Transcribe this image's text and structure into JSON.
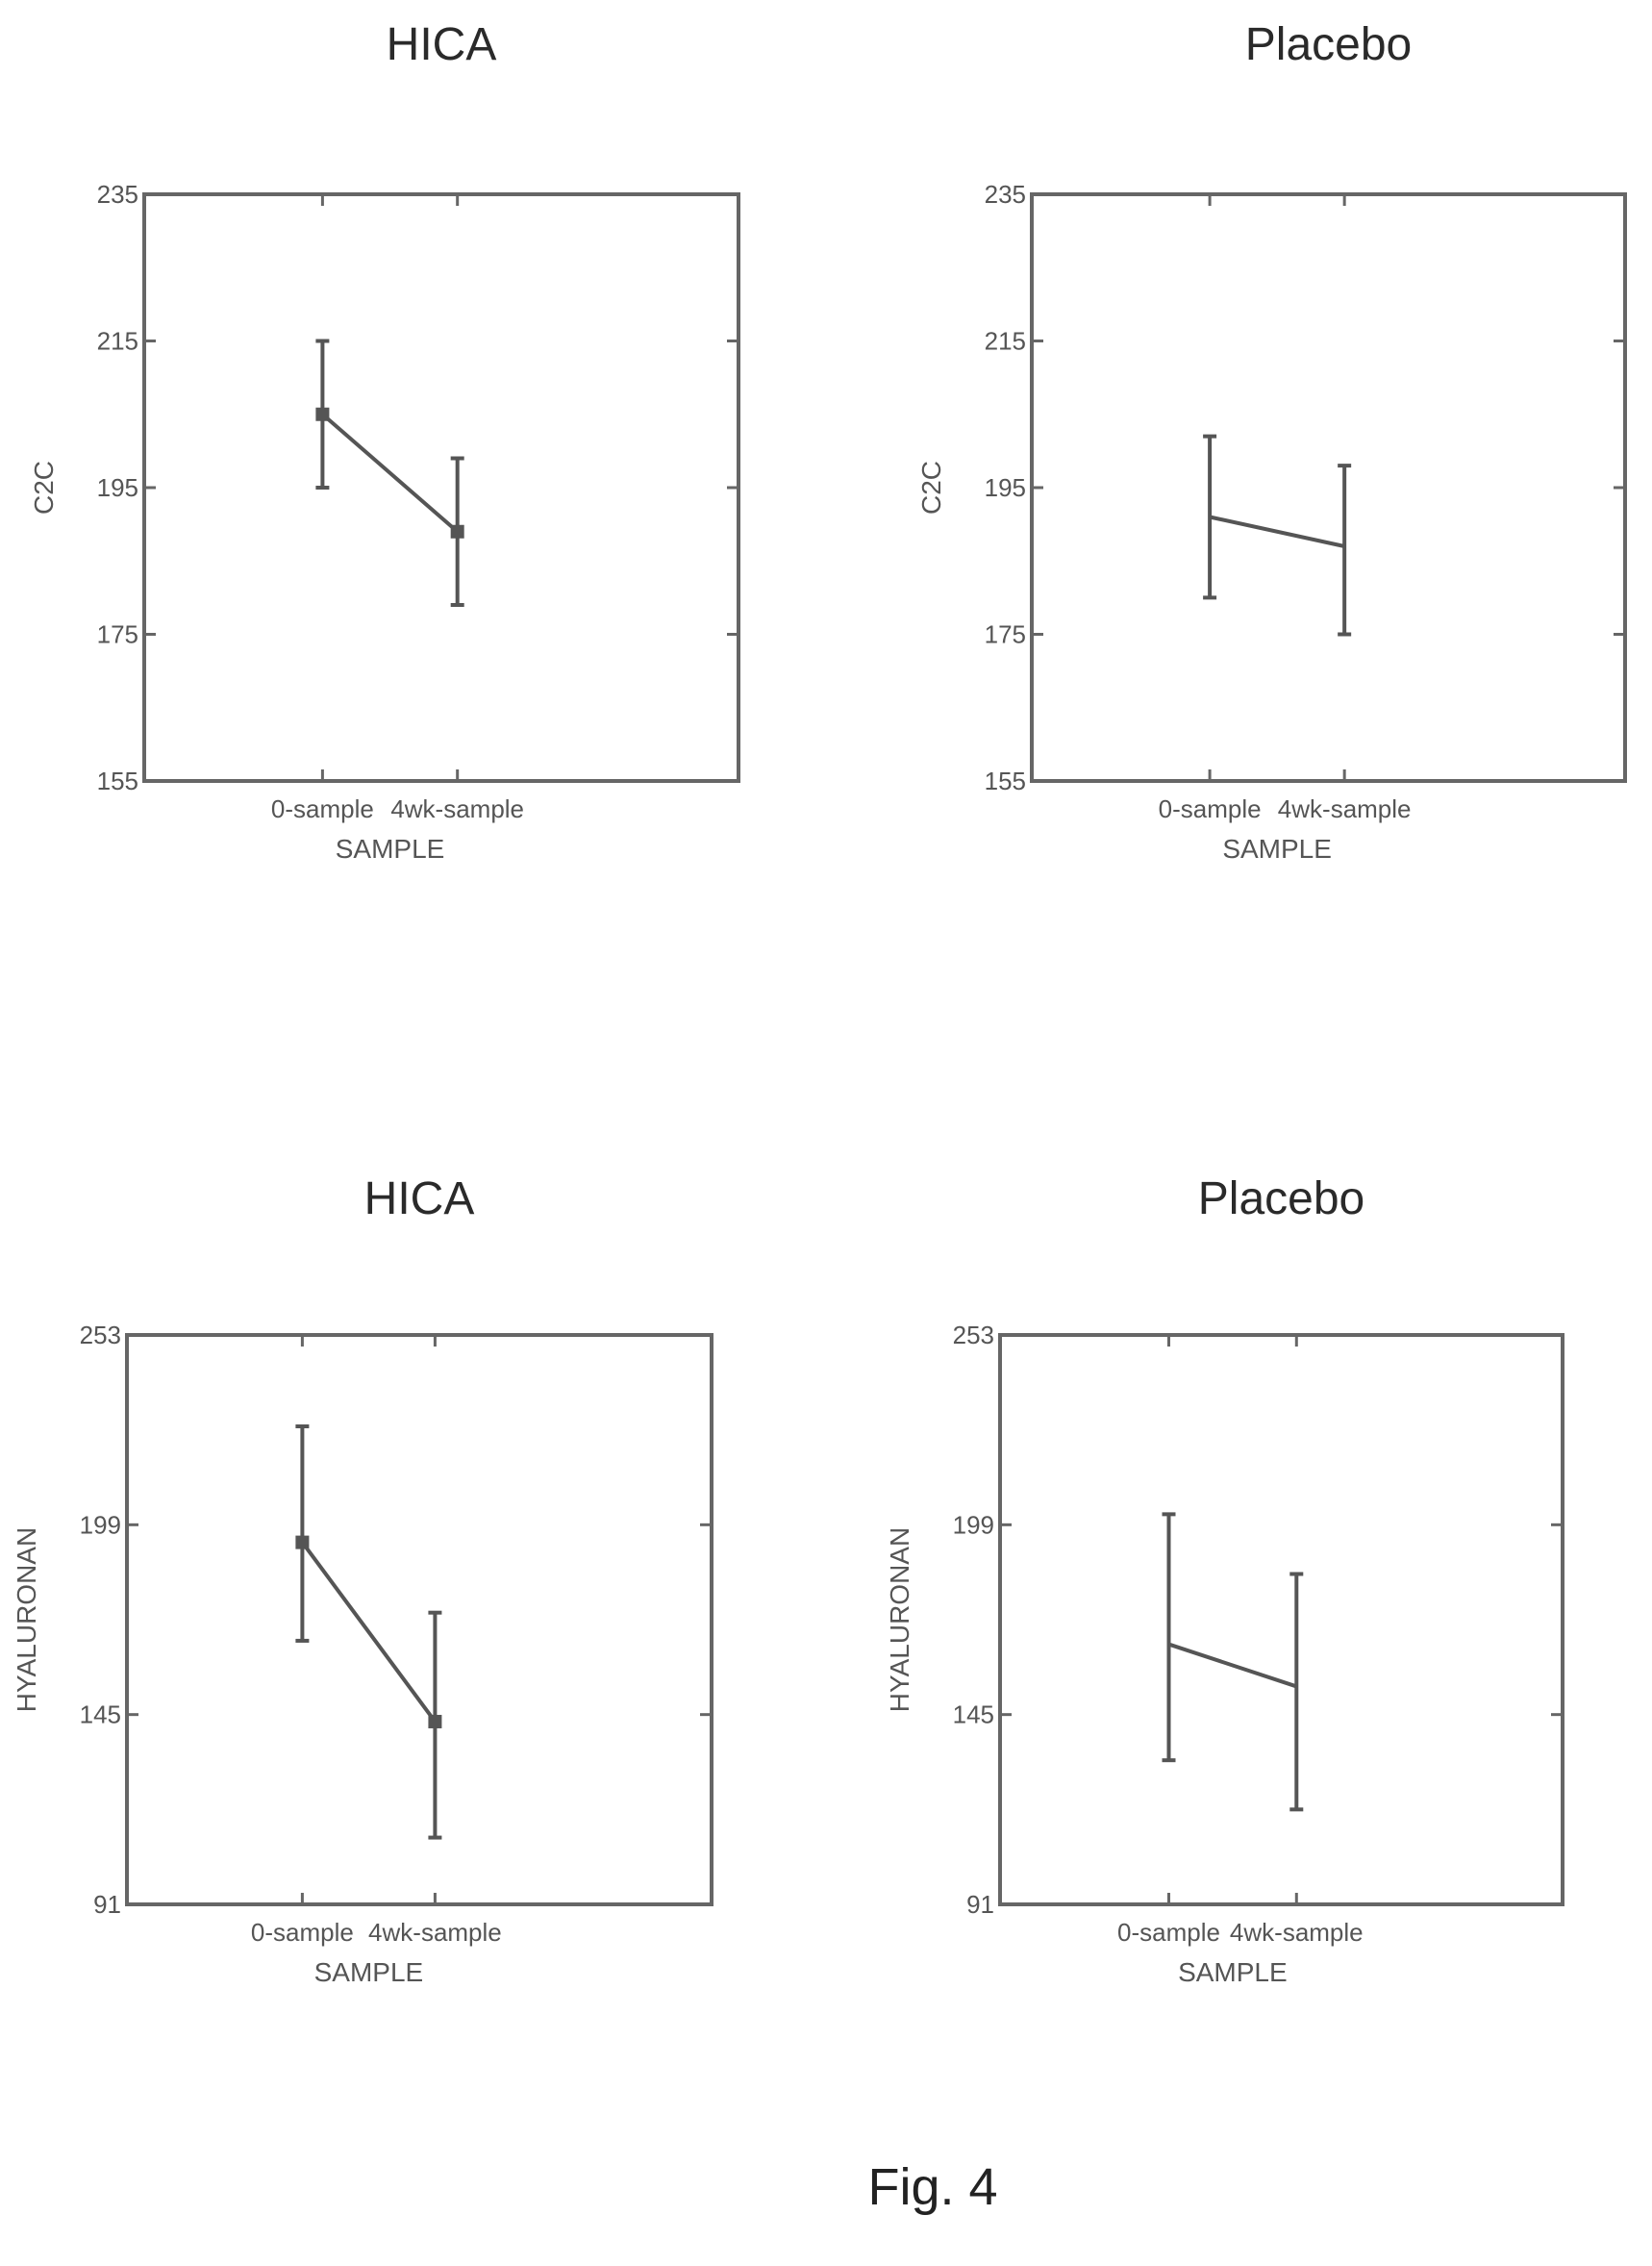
{
  "figure_caption": "Fig. 4",
  "chart_data": [
    {
      "type": "line",
      "title": "HICA",
      "xlabel": "SAMPLE",
      "ylabel": "C2C",
      "categories": [
        "0-sample",
        "4wk-sample"
      ],
      "ylim": [
        155,
        235
      ],
      "yticks": [
        155,
        175,
        195,
        215,
        235
      ],
      "series": [
        {
          "values": [
            205,
            189
          ],
          "error_low": [
            195,
            179
          ],
          "error_high": [
            215,
            199
          ],
          "markers": true
        }
      ]
    },
    {
      "type": "line",
      "title": "Placebo",
      "xlabel": "SAMPLE",
      "ylabel": "C2C",
      "categories": [
        "0-sample",
        "4wk-sample"
      ],
      "ylim": [
        155,
        235
      ],
      "yticks": [
        155,
        175,
        195,
        215,
        235
      ],
      "series": [
        {
          "values": [
            191,
            187
          ],
          "error_low": [
            180,
            175
          ],
          "error_high": [
            202,
            198
          ],
          "markers": false
        }
      ]
    },
    {
      "type": "line",
      "title": "HICA",
      "xlabel": "SAMPLE",
      "ylabel": "HYALURONAN",
      "categories": [
        "0-sample",
        "4wk-sample"
      ],
      "ylim": [
        91,
        253
      ],
      "yticks": [
        91,
        145,
        199,
        253
      ],
      "series": [
        {
          "values": [
            194,
            143
          ],
          "error_low": [
            166,
            110
          ],
          "error_high": [
            227,
            174
          ],
          "markers": true
        }
      ]
    },
    {
      "type": "line",
      "title": "Placebo",
      "xlabel": "SAMPLE",
      "ylabel": "HYALURONAN",
      "categories": [
        "0-sample",
        "4wk-sample"
      ],
      "ylim": [
        91,
        253
      ],
      "yticks": [
        91,
        145,
        199,
        253
      ],
      "series": [
        {
          "values": [
            165,
            153
          ],
          "error_low": [
            132,
            118
          ],
          "error_high": [
            202,
            185
          ],
          "markers": false
        }
      ]
    }
  ]
}
